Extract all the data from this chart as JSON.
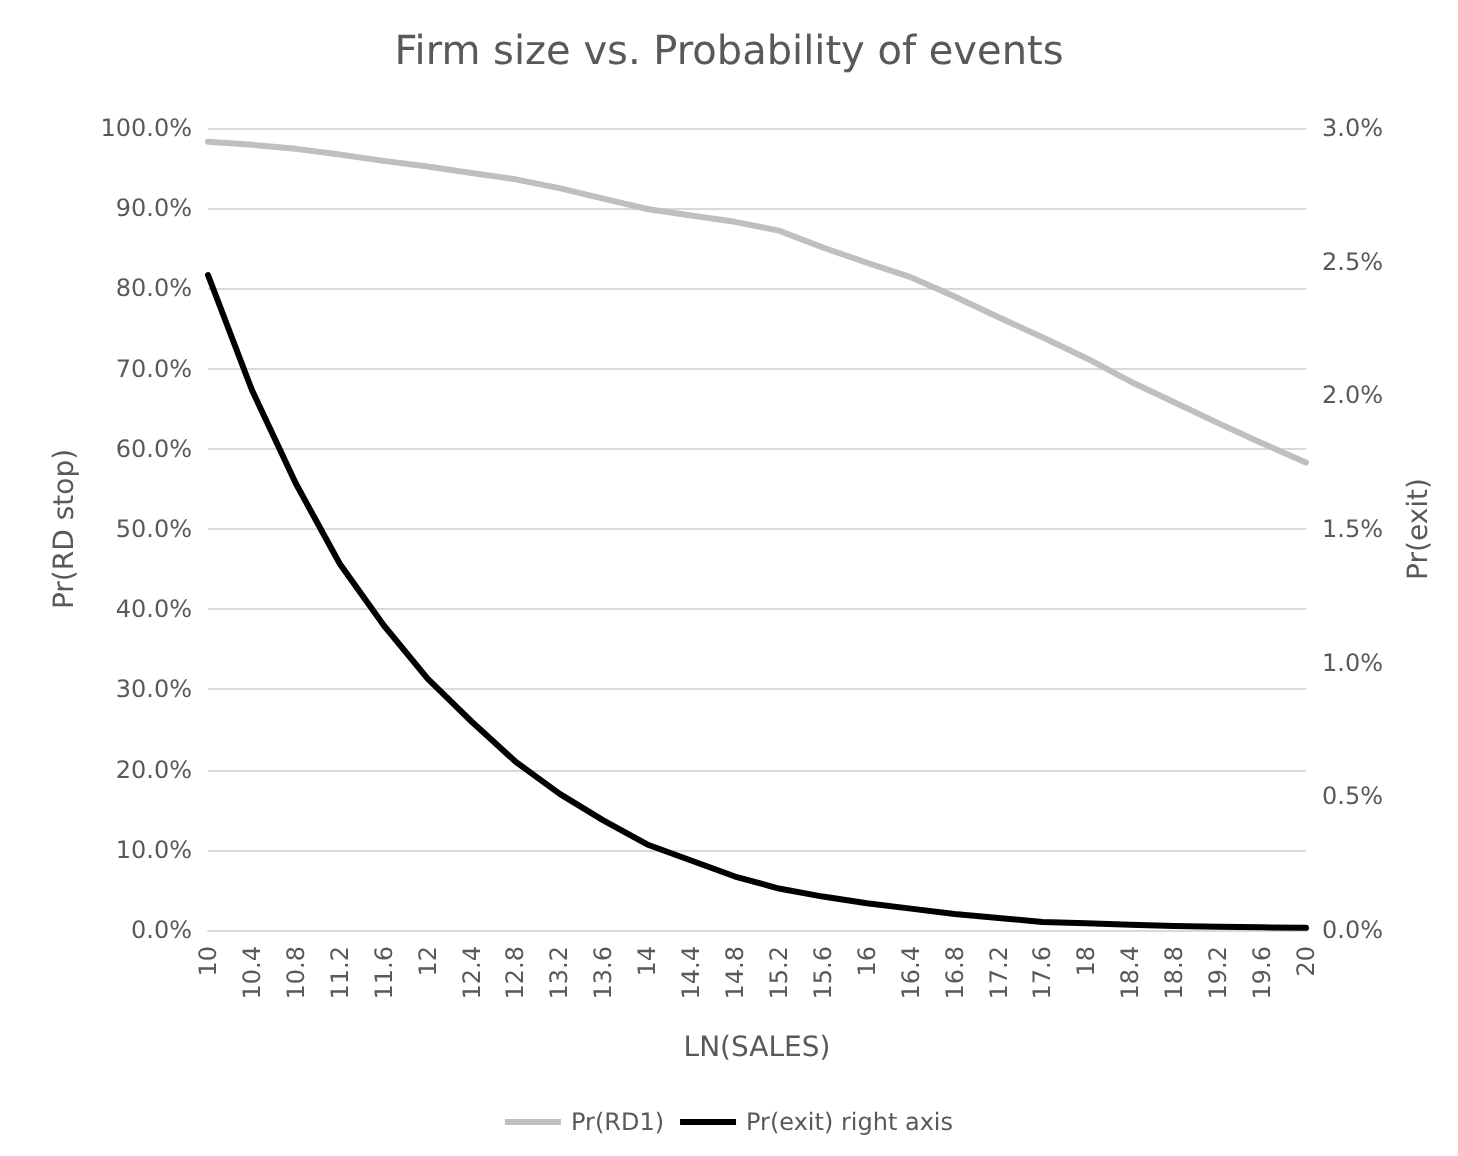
{
  "chart_data": {
    "type": "line",
    "title": "Firm size vs. Probability of events",
    "xlabel": "LN(SALES)",
    "ylabel": "Pr(RD stop)",
    "y2label": "Pr(exit)",
    "categories": [
      "10",
      "10.4",
      "10.8",
      "11.2",
      "11.6",
      "12",
      "12.4",
      "12.8",
      "13.2",
      "13.6",
      "14",
      "14.4",
      "14.8",
      "15.2",
      "15.6",
      "16",
      "16.4",
      "16.8",
      "17.2",
      "17.6",
      "18",
      "18.4",
      "18.8",
      "19.2",
      "19.6",
      "20"
    ],
    "series": [
      {
        "name": "Pr(RD1)",
        "color": "#bfbfbf",
        "values": [
          98.3,
          97.9,
          97.4,
          96.7,
          95.9,
          95.2,
          94.4,
          93.6,
          92.5,
          91.2,
          89.9,
          89.1,
          88.3,
          87.2,
          85.1,
          83.2,
          81.4,
          79.0,
          76.4,
          73.9,
          71.3,
          68.4,
          65.8,
          63.2,
          60.7,
          58.3
        ]
      },
      {
        "name": "Pr(exit) right axis",
        "color": "#000000",
        "axis": "y2",
        "values": [
          2.45,
          2.02,
          1.67,
          1.37,
          1.14,
          0.94,
          0.78,
          0.63,
          0.51,
          0.41,
          0.32,
          0.26,
          0.2,
          0.155,
          0.125,
          0.1,
          0.08,
          0.06,
          0.045,
          0.03,
          0.025,
          0.02,
          0.015,
          0.012,
          0.01,
          0.008
        ]
      }
    ],
    "ylim": [
      0,
      100
    ],
    "yticks": [
      {
        "value": 0,
        "label": "0.0%"
      },
      {
        "value": 10,
        "label": "10.0%"
      },
      {
        "value": 20,
        "label": "20.0%"
      },
      {
        "value": 30,
        "label": "30.0%"
      },
      {
        "value": 40,
        "label": "40.0%"
      },
      {
        "value": 50,
        "label": "50.0%"
      },
      {
        "value": 60,
        "label": "60.0%"
      },
      {
        "value": 70,
        "label": "70.0%"
      },
      {
        "value": 80,
        "label": "80.0%"
      },
      {
        "value": 90,
        "label": "90.0%"
      },
      {
        "value": 100,
        "label": "100.0%"
      }
    ],
    "y2lim": [
      0,
      3
    ],
    "y2ticks": [
      {
        "value": 0,
        "label": "0.0%"
      },
      {
        "value": 0.5,
        "label": "0.5%"
      },
      {
        "value": 1,
        "label": "1.0%"
      },
      {
        "value": 1.5,
        "label": "1.5%"
      },
      {
        "value": 2,
        "label": "2.0%"
      },
      {
        "value": 2.5,
        "label": "2.5%"
      },
      {
        "value": 3,
        "label": "3.0%"
      }
    ],
    "grid": "y",
    "legend": "bottom",
    "marker": "none",
    "line_style": "solid"
  }
}
